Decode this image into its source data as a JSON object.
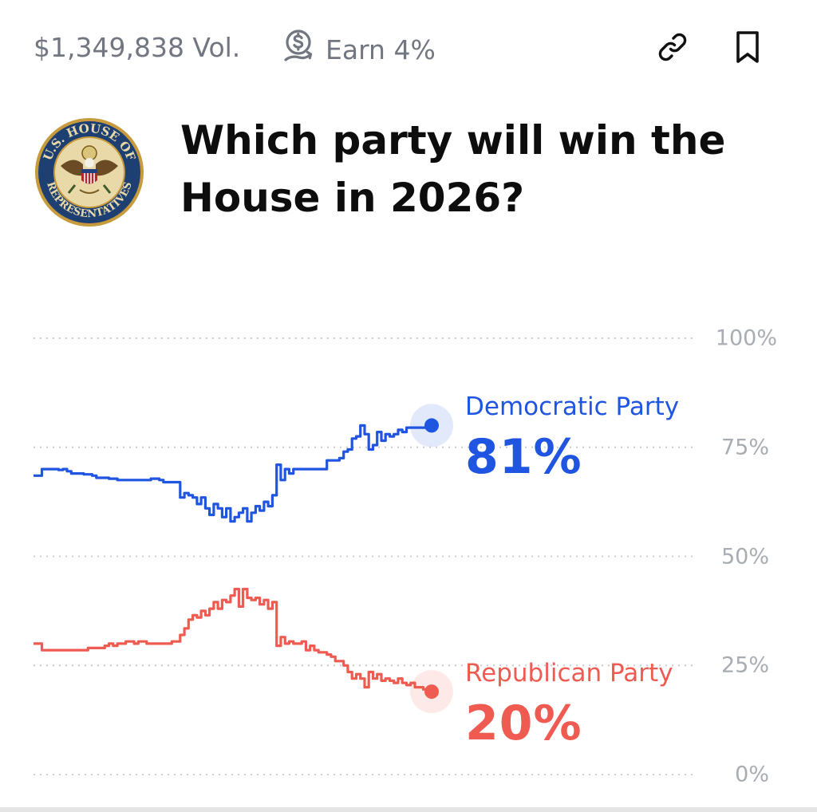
{
  "market": {
    "volume": "$1,349,838 Vol.",
    "earn": "Earn 4%",
    "title": "Which party will win the House in 2026?",
    "logo_alt": "U.S. House of Representatives seal",
    "logo_text": "U.S. HOUSE OF REPRESENTATIVES"
  },
  "icons": {
    "earn": "money-growth-icon",
    "link": "link-icon",
    "bookmark": "bookmark-icon"
  },
  "colors": {
    "democratic": "#1f55e0",
    "republican": "#ef5b50",
    "muted_text": "#717680",
    "grid": "#c9ccd1"
  },
  "chart_data": {
    "type": "line",
    "ylim": [
      0,
      100
    ],
    "yticks": [
      "0%",
      "25%",
      "50%",
      "75%",
      "100%"
    ],
    "grid": true,
    "series": [
      {
        "name": "Democratic Party",
        "value_label": "81%",
        "color": "#1f55e0",
        "values": [
          68.5,
          68.5,
          70,
          70,
          70,
          70,
          69.8,
          70,
          69.5,
          69,
          69,
          69,
          68.8,
          68.8,
          68.5,
          68,
          68,
          68,
          67.8,
          67.8,
          67.5,
          67.5,
          67.5,
          67.5,
          67.5,
          67.5,
          67.5,
          67.5,
          67.8,
          67.8,
          67.5,
          67,
          67,
          67,
          67,
          63.5,
          64.5,
          64,
          63.5,
          62,
          63.5,
          61,
          59.5,
          62,
          61,
          59,
          61,
          58,
          59,
          60,
          61,
          58,
          60,
          61.5,
          60.5,
          62.5,
          61.5,
          64,
          71,
          67.5,
          70,
          69,
          70,
          70,
          70,
          70,
          70,
          70,
          70,
          70,
          72,
          72,
          72,
          72.5,
          74,
          74.5,
          77,
          77.5,
          80,
          78,
          74.5,
          75.5,
          78.5,
          76.5,
          78,
          77.5,
          78,
          79,
          78.5,
          79.5,
          79.5,
          79.5,
          79.5,
          79.5,
          80,
          80
        ]
      },
      {
        "name": "Republican Party",
        "value_label": "20%",
        "color": "#ef5b50",
        "values": [
          30,
          30,
          28.5,
          28.5,
          28.5,
          28.5,
          28.5,
          28.5,
          28.5,
          28.5,
          28.5,
          28.5,
          28.5,
          29,
          29,
          29,
          29,
          29.5,
          30,
          29.5,
          30,
          30,
          30.5,
          30.5,
          30,
          30.5,
          30.5,
          30,
          30,
          30,
          30,
          30,
          30,
          30.5,
          30.5,
          32,
          33.5,
          35.5,
          36.5,
          36,
          37.5,
          36.5,
          38,
          39.5,
          38,
          40,
          39.5,
          41,
          42.5,
          38.5,
          42.5,
          40.5,
          40,
          40.5,
          39,
          40,
          38,
          39.5,
          29.5,
          31.5,
          30,
          30.5,
          30,
          30,
          30.5,
          28.5,
          29.5,
          28.5,
          28,
          28,
          27.5,
          27,
          26,
          26,
          25,
          23.5,
          22,
          23,
          22,
          20,
          23.5,
          22,
          23,
          21.5,
          22,
          21.5,
          21,
          22,
          21,
          20.5,
          21,
          20,
          20,
          19.5,
          19.5,
          19
        ]
      }
    ]
  }
}
